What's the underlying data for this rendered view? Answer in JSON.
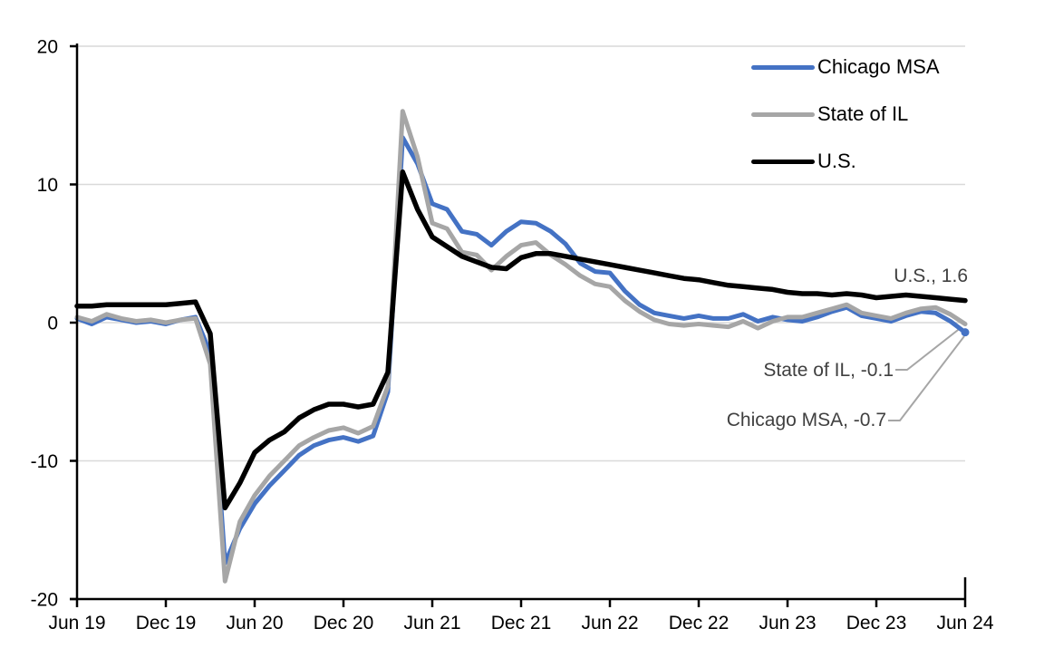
{
  "chart_data": {
    "type": "line",
    "title": "",
    "subtitle": "",
    "frequency": "monthly",
    "grid": "horizontal",
    "legend_position": "top-right",
    "gridline_color": "#D9D9D9",
    "axis_color": "#000000",
    "annotation_text_color": "#404040",
    "leader_line_color": "#A6A6A6",
    "ylim": [
      -20,
      20
    ],
    "y_tick_labels": [
      "20",
      "10",
      "0",
      "-10",
      "-20"
    ],
    "y_tick_values": [
      20,
      10,
      0,
      -10,
      -20
    ],
    "x_tick_labels": [
      "Jun 19",
      "Dec 19",
      "Jun 20",
      "Dec 20",
      "Jun 21",
      "Dec 21",
      "Jun 22",
      "Dec 22",
      "Jun 23",
      "Dec 23",
      "Jun 24"
    ],
    "months": [
      "2019-06",
      "2019-07",
      "2019-08",
      "2019-09",
      "2019-10",
      "2019-11",
      "2019-12",
      "2020-01",
      "2020-02",
      "2020-03",
      "2020-04",
      "2020-05",
      "2020-06",
      "2020-07",
      "2020-08",
      "2020-09",
      "2020-10",
      "2020-11",
      "2020-12",
      "2021-01",
      "2021-02",
      "2021-03",
      "2021-04",
      "2021-05",
      "2021-06",
      "2021-07",
      "2021-08",
      "2021-09",
      "2021-10",
      "2021-11",
      "2021-12",
      "2022-01",
      "2022-02",
      "2022-03",
      "2022-04",
      "2022-05",
      "2022-06",
      "2022-07",
      "2022-08",
      "2022-09",
      "2022-10",
      "2022-11",
      "2022-12",
      "2023-01",
      "2023-02",
      "2023-03",
      "2023-04",
      "2023-05",
      "2023-06",
      "2023-07",
      "2023-08",
      "2023-09",
      "2023-10",
      "2023-11",
      "2023-12",
      "2024-01",
      "2024-02",
      "2024-03",
      "2024-04",
      "2024-05",
      "2024-06"
    ],
    "series": [
      {
        "name": "Chicago MSA",
        "color": "#4472C4",
        "end_value": -0.7,
        "end_marker": true,
        "values": [
          0.3,
          -0.1,
          0.4,
          0.2,
          0.0,
          0.1,
          -0.1,
          0.2,
          0.4,
          -2.2,
          -17.4,
          -14.9,
          -13.1,
          -11.8,
          -10.7,
          -9.6,
          -8.9,
          -8.5,
          -8.3,
          -8.6,
          -8.2,
          -5.0,
          13.4,
          11.5,
          8.6,
          8.2,
          6.6,
          6.4,
          5.6,
          6.6,
          7.3,
          7.2,
          6.6,
          5.7,
          4.3,
          3.7,
          3.6,
          2.3,
          1.3,
          0.7,
          0.5,
          0.3,
          0.5,
          0.3,
          0.3,
          0.6,
          0.1,
          0.4,
          0.2,
          0.1,
          0.4,
          0.8,
          1.1,
          0.5,
          0.3,
          0.1,
          0.5,
          0.8,
          0.7,
          0.1,
          -0.7
        ]
      },
      {
        "name": "State of IL",
        "color": "#A6A6A6",
        "end_value": -0.1,
        "end_marker": false,
        "values": [
          0.4,
          0.1,
          0.6,
          0.3,
          0.1,
          0.2,
          0.0,
          0.2,
          0.3,
          -3.0,
          -18.7,
          -14.4,
          -12.5,
          -11.1,
          -10.0,
          -8.9,
          -8.3,
          -7.8,
          -7.6,
          -8.0,
          -7.5,
          -4.6,
          15.3,
          12.0,
          7.2,
          6.8,
          5.1,
          4.9,
          3.8,
          4.8,
          5.6,
          5.8,
          4.9,
          4.2,
          3.4,
          2.8,
          2.6,
          1.6,
          0.8,
          0.2,
          -0.1,
          -0.2,
          -0.1,
          -0.2,
          -0.3,
          0.1,
          -0.4,
          0.1,
          0.4,
          0.4,
          0.7,
          1.0,
          1.3,
          0.7,
          0.5,
          0.3,
          0.7,
          1.0,
          1.1,
          0.6,
          -0.1
        ]
      },
      {
        "name": "U.S.",
        "color": "#000000",
        "end_value": 1.6,
        "end_marker": false,
        "values": [
          1.2,
          1.2,
          1.3,
          1.3,
          1.3,
          1.3,
          1.3,
          1.4,
          1.5,
          -0.8,
          -13.4,
          -11.6,
          -9.4,
          -8.5,
          -7.9,
          -6.9,
          -6.3,
          -5.9,
          -5.9,
          -6.1,
          -5.9,
          -3.6,
          10.9,
          8.2,
          6.2,
          5.5,
          4.8,
          4.4,
          4.0,
          3.9,
          4.7,
          5.0,
          5.0,
          4.8,
          4.6,
          4.4,
          4.2,
          4.0,
          3.8,
          3.6,
          3.4,
          3.2,
          3.1,
          2.9,
          2.7,
          2.6,
          2.5,
          2.4,
          2.2,
          2.1,
          2.1,
          2.0,
          2.1,
          2.0,
          1.8,
          1.9,
          2.0,
          1.9,
          1.8,
          1.7,
          1.6
        ]
      }
    ],
    "annotations": [
      {
        "text": "U.S., 1.6",
        "series": "U.S."
      },
      {
        "text": "State of IL, -0.1",
        "series": "State of IL"
      },
      {
        "text": "Chicago MSA, -0.7",
        "series": "Chicago MSA"
      }
    ]
  }
}
